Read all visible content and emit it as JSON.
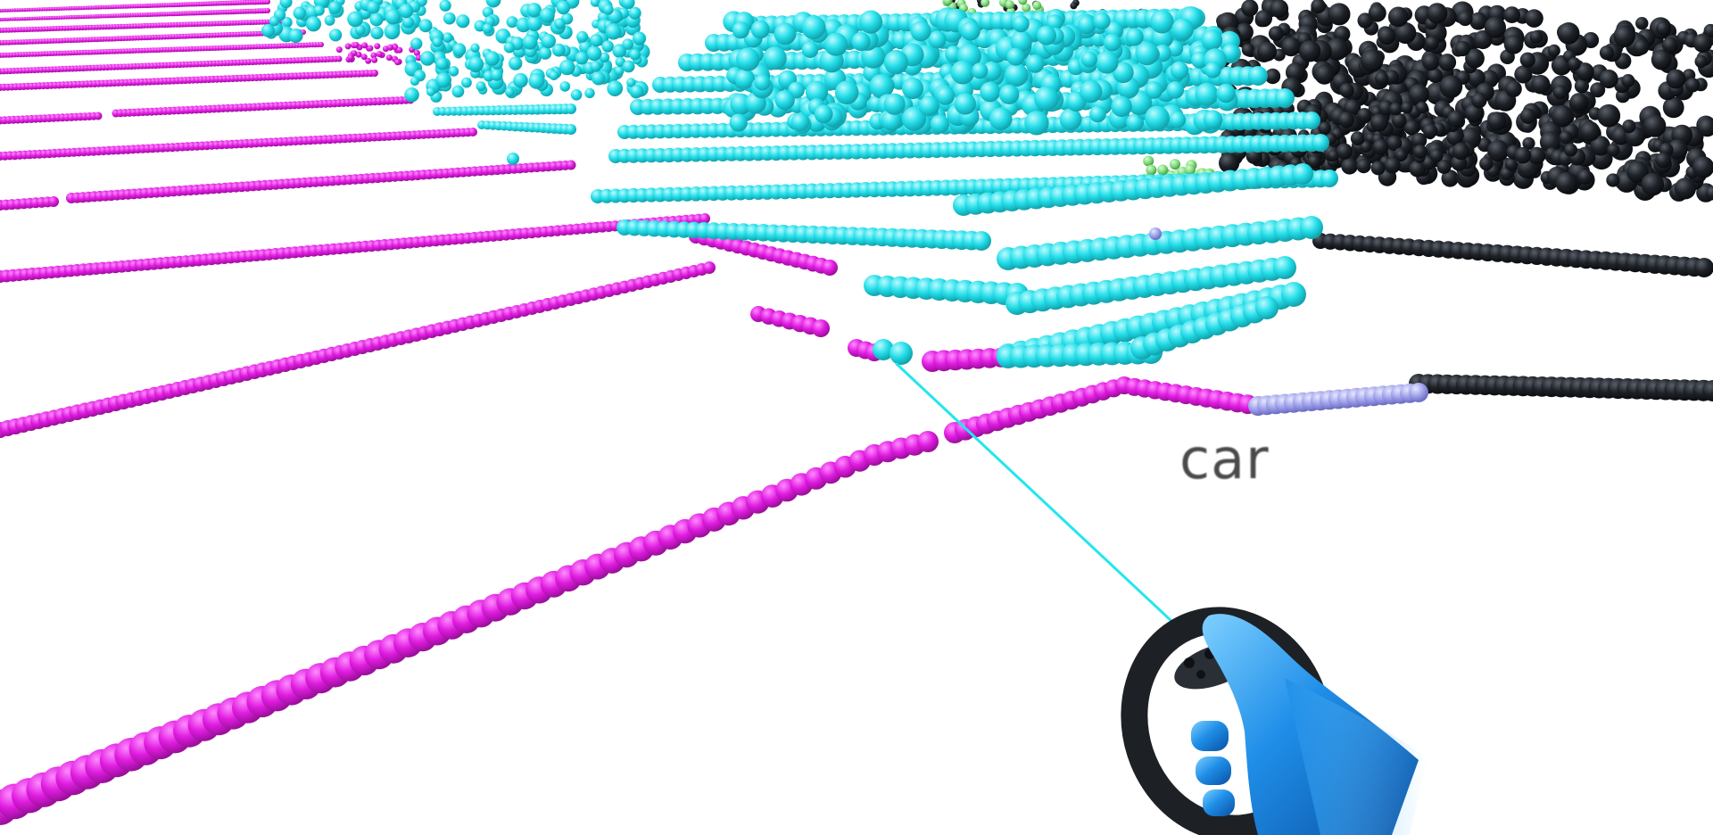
{
  "viewport": {
    "hover_label": "car",
    "colors": {
      "road_marking": "#e01ce0",
      "car": "#22dde8",
      "vegetation": "#7dd87a",
      "building": "#1e2228",
      "unlabeled": "#9a9ce8",
      "laser_pointer": "#22e6ee",
      "hand": "#1f8ee8"
    },
    "controller": {
      "device": "vr-controller",
      "icon": "vr-controller-icon"
    }
  }
}
